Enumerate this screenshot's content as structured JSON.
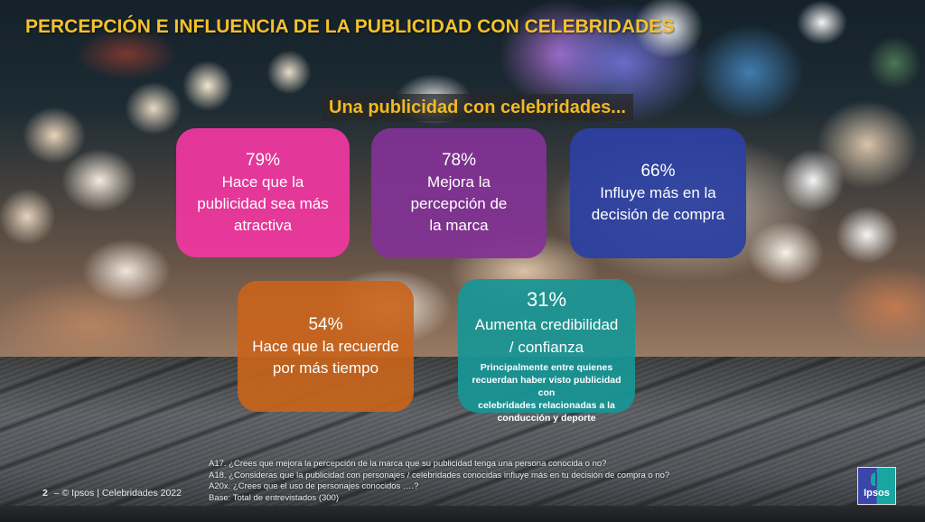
{
  "slide": {
    "title": "PERCEPCIÓN E INFLUENCIA DE LA PUBLICIDAD CON CELEBRIDADES",
    "subtitle": "Una publicidad con celebridades...",
    "colors": {
      "title": "#f2c12e",
      "pink": "#f037a0",
      "purple": "#823296",
      "blue": "#2c40a0",
      "orange": "#c8641c",
      "teal": "#189696"
    },
    "cards": [
      {
        "pct": "79%",
        "desc_lines": [
          "Hace que la",
          "publicidad sea más",
          "atractiva"
        ]
      },
      {
        "pct": "78%",
        "desc_lines": [
          "Mejora la",
          "percepción de",
          "la marca"
        ]
      },
      {
        "pct": "66%",
        "desc_lines": [
          "Influye más en la",
          "decisión de compra"
        ]
      },
      {
        "pct": "54%",
        "desc_lines": [
          "Hace que la recuerde",
          "por más tiempo"
        ]
      },
      {
        "pct": "31%",
        "desc_lines": [
          "Aumenta credibilidad",
          "/ confianza"
        ],
        "note_lines": [
          "Principalmente entre quienes",
          "recuerdan haber visto publicidad con",
          "celebridades relacionadas a la",
          "conducción y deporte"
        ]
      }
    ],
    "notes": [
      "A17. ¿Crees que mejora la percepción de la marca que su publicidad tenga una persona conocida o no?",
      "A18. ¿Consideras que la publicidad con personajes / celebridades conocidas influye más en tu decisión de compra o no?",
      "A20x. ¿Crees que el uso de personajes conocidos ….?",
      "Base: Total de entrevistados (300)"
    ],
    "footer": {
      "page": "2",
      "text": "– © Ipsos | Celebridades 2022"
    },
    "logo": {
      "text": "Ipsos",
      "icon": "ipsos-logo-icon"
    }
  }
}
